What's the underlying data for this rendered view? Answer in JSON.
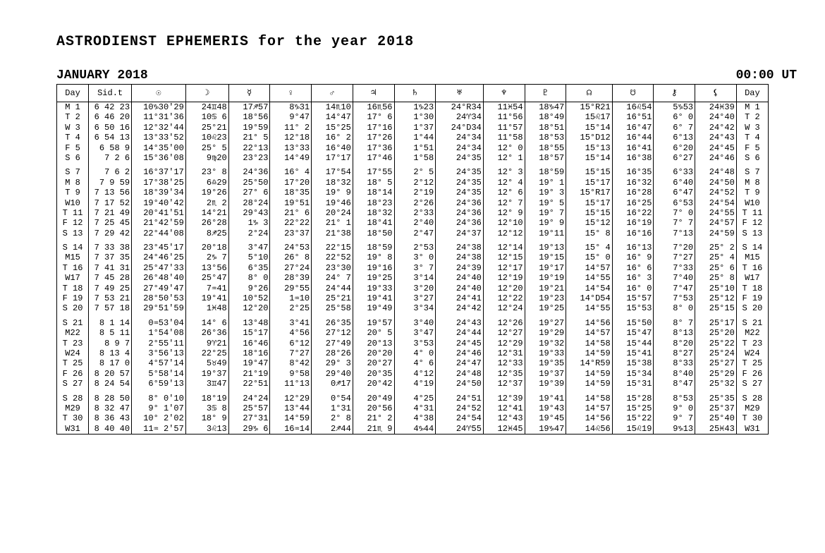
{
  "colors": {
    "bg": "#ffffff",
    "border": "#000000",
    "text": "#000000"
  },
  "font": {
    "family": "Courier New",
    "title_size_pt": 20,
    "header_size_pt": 18,
    "body_size_pt": 12
  },
  "title": "ASTRODIENST EPHEMERIS for the year 2018",
  "month_label": "JANUARY 2018",
  "time_label": "00:00 UT",
  "headers": [
    "Day",
    "Sid.t",
    "☉",
    "☽",
    "☿",
    "♀",
    "♂",
    "♃",
    "♄",
    "♅",
    "♆",
    "♇",
    "☊",
    "☋",
    "⚷",
    "⚸",
    "Day"
  ],
  "rows": [
    {
      "cells": [
        "M 1",
        "6 42 23",
        "10♑30'29",
        "24♊48",
        "17♐57",
        "8♑31",
        "14♏10",
        "16♏56",
        "1♑23",
        "24°R34",
        "11♓54",
        "18♑47",
        "15°R21",
        "16♌54",
        "5♑53",
        "24♓39",
        "M 1"
      ]
    },
    {
      "cells": [
        "T 2",
        "6 46 20",
        "11°31'36",
        "10♋ 6",
        "18°56",
        "9°47",
        "14°47",
        "17° 6",
        "1°30",
        "24♈34",
        "11°56",
        "18°49",
        "15♌17",
        "16°51",
        "6° 0",
        "24°40",
        "T 2"
      ]
    },
    {
      "cells": [
        "W 3",
        "6 50 16",
        "12°32'44",
        "25°21",
        "19°59",
        "11° 2",
        "15°25",
        "17°16",
        "1°37",
        "24°D34",
        "11°57",
        "18°51",
        "15°14",
        "16°47",
        "6° 7",
        "24°42",
        "W 3"
      ]
    },
    {
      "cells": [
        "T 4",
        "6 54 13",
        "13°33'52",
        "10♌23",
        "21° 5",
        "12°18",
        "16° 2",
        "17°26",
        "1°44",
        "24°34",
        "11°58",
        "18°53",
        "15°D12",
        "16°44",
        "6°13",
        "24°43",
        "T 4"
      ]
    },
    {
      "cells": [
        "F 5",
        "6 58 9",
        "14°35'00",
        "25° 5",
        "22°13",
        "13°33",
        "16°40",
        "17°36",
        "1°51",
        "24°34",
        "12° 0",
        "18°55",
        "15°13",
        "16°41",
        "6°20",
        "24°45",
        "F 5"
      ]
    },
    {
      "cells": [
        "S 6",
        "7 2 6",
        "15°36'08",
        "9♍20",
        "23°23",
        "14°49",
        "17°17",
        "17°46",
        "1°58",
        "24°35",
        "12° 1",
        "18°57",
        "15°14",
        "16°38",
        "6°27",
        "24°46",
        "S 6"
      ]
    },
    {
      "gap": true
    },
    {
      "cells": [
        "S 7",
        "7 6 2",
        "16°37'17",
        "23° 8",
        "24°36",
        "16° 4",
        "17°54",
        "17°55",
        "2° 5",
        "24°35",
        "12° 3",
        "18°59",
        "15°15",
        "16°35",
        "6°33",
        "24°48",
        "S 7"
      ]
    },
    {
      "cells": [
        "M 8",
        "7 9 59",
        "17°38'25",
        "6♎29",
        "25°50",
        "17°20",
        "18°32",
        "18° 5",
        "2°12",
        "24°35",
        "12° 4",
        "19° 1",
        "15°17",
        "16°32",
        "6°40",
        "24°50",
        "M 8"
      ]
    },
    {
      "cells": [
        "T 9",
        "7 13 56",
        "18°39'34",
        "19°26",
        "27° 6",
        "18°35",
        "19° 9",
        "18°14",
        "2°19",
        "24°35",
        "12° 6",
        "19° 3",
        "15°R17",
        "16°28",
        "6°47",
        "24°52",
        "T 9"
      ]
    },
    {
      "cells": [
        "W10",
        "7 17 52",
        "19°40'42",
        "2♏ 2",
        "28°24",
        "19°51",
        "19°46",
        "18°23",
        "2°26",
        "24°36",
        "12° 7",
        "19° 5",
        "15°17",
        "16°25",
        "6°53",
        "24°54",
        "W10"
      ]
    },
    {
      "cells": [
        "T 11",
        "7 21 49",
        "20°41'51",
        "14°21",
        "29°43",
        "21° 6",
        "20°24",
        "18°32",
        "2°33",
        "24°36",
        "12° 9",
        "19° 7",
        "15°15",
        "16°22",
        "7° 0",
        "24°55",
        "T 11"
      ]
    },
    {
      "cells": [
        "F 12",
        "7 25 45",
        "21°42'59",
        "26°28",
        "1♑ 3",
        "22°22",
        "21° 1",
        "18°41",
        "2°40",
        "24°36",
        "12°10",
        "19° 9",
        "15°12",
        "16°19",
        "7° 7",
        "24°57",
        "F 12"
      ]
    },
    {
      "cells": [
        "S 13",
        "7 29 42",
        "22°44'08",
        "8♐25",
        "2°24",
        "23°37",
        "21°38",
        "18°50",
        "2°47",
        "24°37",
        "12°12",
        "19°11",
        "15° 8",
        "16°16",
        "7°13",
        "24°59",
        "S 13"
      ]
    },
    {
      "gap": true
    },
    {
      "cells": [
        "S 14",
        "7 33 38",
        "23°45'17",
        "20°18",
        "3°47",
        "24°53",
        "22°15",
        "18°59",
        "2°53",
        "24°38",
        "12°14",
        "19°13",
        "15° 4",
        "16°13",
        "7°20",
        "25° 2",
        "S 14"
      ]
    },
    {
      "cells": [
        "M15",
        "7 37 35",
        "24°46'25",
        "2♑ 7",
        "5°10",
        "26° 8",
        "22°52",
        "19° 8",
        "3° 0",
        "24°38",
        "12°15",
        "19°15",
        "15° 0",
        "16° 9",
        "7°27",
        "25° 4",
        "M15"
      ]
    },
    {
      "cells": [
        "T 16",
        "7 41 31",
        "25°47'33",
        "13°56",
        "6°35",
        "27°24",
        "23°30",
        "19°16",
        "3° 7",
        "24°39",
        "12°17",
        "19°17",
        "14°57",
        "16° 6",
        "7°33",
        "25° 6",
        "T 16"
      ]
    },
    {
      "cells": [
        "W17",
        "7 45 28",
        "26°48'40",
        "25°47",
        "8° 0",
        "28°39",
        "24° 7",
        "19°25",
        "3°14",
        "24°40",
        "12°19",
        "19°19",
        "14°55",
        "16° 3",
        "7°40",
        "25° 8",
        "W17"
      ]
    },
    {
      "cells": [
        "T 18",
        "7 49 25",
        "27°49'47",
        "7♒41",
        "9°26",
        "29°55",
        "24°44",
        "19°33",
        "3°20",
        "24°40",
        "12°20",
        "19°21",
        "14°54",
        "16° 0",
        "7°47",
        "25°10",
        "T 18"
      ]
    },
    {
      "cells": [
        "F 19",
        "7 53 21",
        "28°50'53",
        "19°41",
        "10°52",
        "1♒10",
        "25°21",
        "19°41",
        "3°27",
        "24°41",
        "12°22",
        "19°23",
        "14°D54",
        "15°57",
        "7°53",
        "25°12",
        "F 19"
      ]
    },
    {
      "cells": [
        "S 20",
        "7 57 18",
        "29°51'59",
        "1♓48",
        "12°20",
        "2°25",
        "25°58",
        "19°49",
        "3°34",
        "24°42",
        "12°24",
        "19°25",
        "14°55",
        "15°53",
        "8° 0",
        "25°15",
        "S 20"
      ]
    },
    {
      "gap": true
    },
    {
      "cells": [
        "S 21",
        "8 1 14",
        "0♒53'04",
        "14° 6",
        "13°48",
        "3°41",
        "26°35",
        "19°57",
        "3°40",
        "24°43",
        "12°26",
        "19°27",
        "14°56",
        "15°50",
        "8° 7",
        "25°17",
        "S 21"
      ]
    },
    {
      "cells": [
        "M22",
        "8 5 11",
        "1°54'08",
        "26°36",
        "15°17",
        "4°56",
        "27°12",
        "20° 5",
        "3°47",
        "24°44",
        "12°27",
        "19°29",
        "14°57",
        "15°47",
        "8°13",
        "25°20",
        "M22"
      ]
    },
    {
      "cells": [
        "T 23",
        "8 9 7",
        "2°55'11",
        "9♈21",
        "16°46",
        "6°12",
        "27°49",
        "20°13",
        "3°53",
        "24°45",
        "12°29",
        "19°32",
        "14°58",
        "15°44",
        "8°20",
        "25°22",
        "T 23"
      ]
    },
    {
      "cells": [
        "W24",
        "8 13 4",
        "3°56'13",
        "22°25",
        "18°16",
        "7°27",
        "28°26",
        "20°20",
        "4° 0",
        "24°46",
        "12°31",
        "19°33",
        "14°59",
        "15°41",
        "8°27",
        "25°24",
        "W24"
      ]
    },
    {
      "cells": [
        "T 25",
        "8 17 0",
        "4°57'14",
        "5♉49",
        "19°47",
        "8°42",
        "29° 3",
        "20°27",
        "4° 6",
        "24°47",
        "12°33",
        "19°35",
        "14°R59",
        "15°38",
        "8°33",
        "25°27",
        "T 25"
      ]
    },
    {
      "cells": [
        "F 26",
        "8 20 57",
        "5°58'14",
        "19°37",
        "21°19",
        "9°58",
        "29°40",
        "20°35",
        "4°12",
        "24°48",
        "12°35",
        "19°37",
        "14°59",
        "15°34",
        "8°40",
        "25°29",
        "F 26"
      ]
    },
    {
      "cells": [
        "S 27",
        "8 24 54",
        "6°59'13",
        "3♊47",
        "22°51",
        "11°13",
        "0♐17",
        "20°42",
        "4°19",
        "24°50",
        "12°37",
        "19°39",
        "14°59",
        "15°31",
        "8°47",
        "25°32",
        "S 27"
      ]
    },
    {
      "gap": true
    },
    {
      "cells": [
        "S 28",
        "8 28 50",
        "8° 0'10",
        "18°19",
        "24°24",
        "12°29",
        "0°54",
        "20°49",
        "4°25",
        "24°51",
        "12°39",
        "19°41",
        "14°58",
        "15°28",
        "8°53",
        "25°35",
        "S 28"
      ]
    },
    {
      "cells": [
        "M29",
        "8 32 47",
        "9° 1'07",
        "3♋ 8",
        "25°57",
        "13°44",
        "1°31",
        "20°56",
        "4°31",
        "24°52",
        "12°41",
        "19°43",
        "14°57",
        "15°25",
        "9° 0",
        "25°37",
        "M29"
      ]
    },
    {
      "cells": [
        "T 30",
        "8 36 43",
        "10° 2'02",
        "18° 9",
        "27°31",
        "14°59",
        "2° 8",
        "21° 2",
        "4°38",
        "24°54",
        "12°43",
        "19°45",
        "14°56",
        "15°22",
        "9° 7",
        "25°40",
        "T 30"
      ]
    },
    {
      "cells": [
        "W31",
        "8 40 40",
        "11♒ 2'57",
        "3♌13",
        "29♑ 6",
        "16♒14",
        "2♐44",
        "21♏ 9",
        "4♑44",
        "24♈55",
        "12♓45",
        "19♑47",
        "14♌56",
        "15♌19",
        "9♑13",
        "25♓43",
        "W31"
      ]
    }
  ]
}
